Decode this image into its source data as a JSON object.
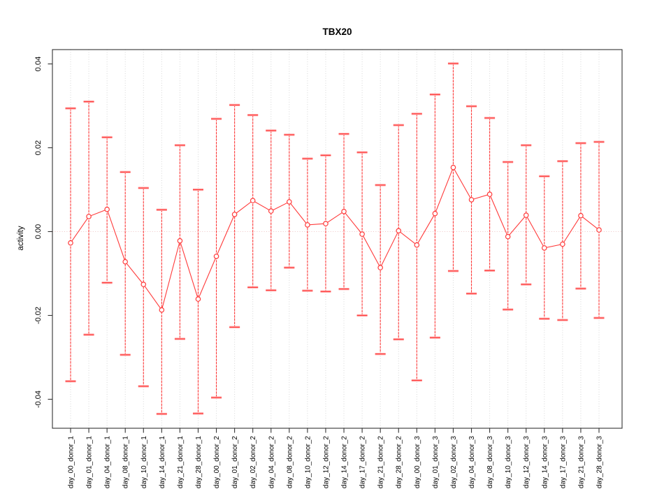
{
  "chart_data": {
    "type": "scatter",
    "title": "TBX20",
    "xlabel": "",
    "ylabel": "activity",
    "ylim": [
      -0.0469,
      0.0434
    ],
    "grid": "vertical-dotted-at-each-category",
    "zero_reference_line": true,
    "legend_position": "none",
    "x_tick_label_rotation": 90,
    "marker": "open-circle",
    "error_bars": true,
    "yticks": {
      "values": [
        -0.04,
        -0.02,
        0.0,
        0.02,
        0.04
      ],
      "labels": [
        "-0.04",
        "-0.02",
        "0.00",
        "0.02",
        "0.04"
      ]
    },
    "categories": [
      "day_00_donor_1",
      "day_01_donor_1",
      "day_04_donor_1",
      "day_08_donor_1",
      "day_10_donor_1",
      "day_14_donor_1",
      "day_21_donor_1",
      "day_28_donor_1",
      "day_00_donor_2",
      "day_01_donor_2",
      "day_02_donor_2",
      "day_04_donor_2",
      "day_08_donor_2",
      "day_10_donor_2",
      "day_12_donor_2",
      "day_14_donor_2",
      "day_17_donor_2",
      "day_21_donor_2",
      "day_28_donor_2",
      "day_00_donor_3",
      "day_01_donor_3",
      "day_02_donor_3",
      "day_04_donor_3",
      "day_08_donor_3",
      "day_10_donor_3",
      "day_12_donor_3",
      "day_14_donor_3",
      "day_17_donor_3",
      "day_21_donor_3",
      "day_28_donor_3"
    ],
    "series": [
      {
        "name": "activity",
        "values": [
          -0.0027,
          0.0036,
          0.0053,
          -0.0072,
          -0.0126,
          -0.0187,
          -0.0022,
          -0.0161,
          -0.0059,
          0.0041,
          0.0074,
          0.0049,
          0.0071,
          0.0016,
          0.0019,
          0.0048,
          -0.0006,
          -0.0086,
          0.0002,
          -0.0032,
          0.0043,
          0.0153,
          0.0076,
          0.0089,
          -0.0012,
          0.0039,
          -0.0039,
          -0.003,
          0.0038,
          0.0004
        ],
        "err_high": [
          0.0294,
          0.031,
          0.0225,
          0.0142,
          0.0104,
          0.0052,
          0.0206,
          0.01,
          0.0269,
          0.0302,
          0.0278,
          0.0241,
          0.0231,
          0.0174,
          0.0182,
          0.0233,
          0.0189,
          0.0111,
          0.0254,
          0.0281,
          0.0327,
          0.0401,
          0.0299,
          0.0271,
          0.0166,
          0.0206,
          0.0132,
          0.0168,
          0.0211,
          0.0214
        ],
        "err_low": [
          -0.0357,
          -0.0246,
          -0.0122,
          -0.0294,
          -0.0369,
          -0.0435,
          -0.0256,
          -0.0434,
          -0.0396,
          -0.0228,
          -0.0133,
          -0.014,
          -0.0086,
          -0.0141,
          -0.0143,
          -0.0137,
          -0.02,
          -0.0292,
          -0.0257,
          -0.0355,
          -0.0253,
          -0.0094,
          -0.0148,
          -0.0093,
          -0.0186,
          -0.0126,
          -0.0208,
          -0.0211,
          -0.0136,
          -0.0206
        ]
      }
    ],
    "colors": {
      "series": "#ff3b3b",
      "error_cap_halo": "#ffb3b3",
      "gridline": "#d6d6d6",
      "zero_line": "#eec6c6",
      "axis": "#333333",
      "text": "#000000"
    }
  }
}
